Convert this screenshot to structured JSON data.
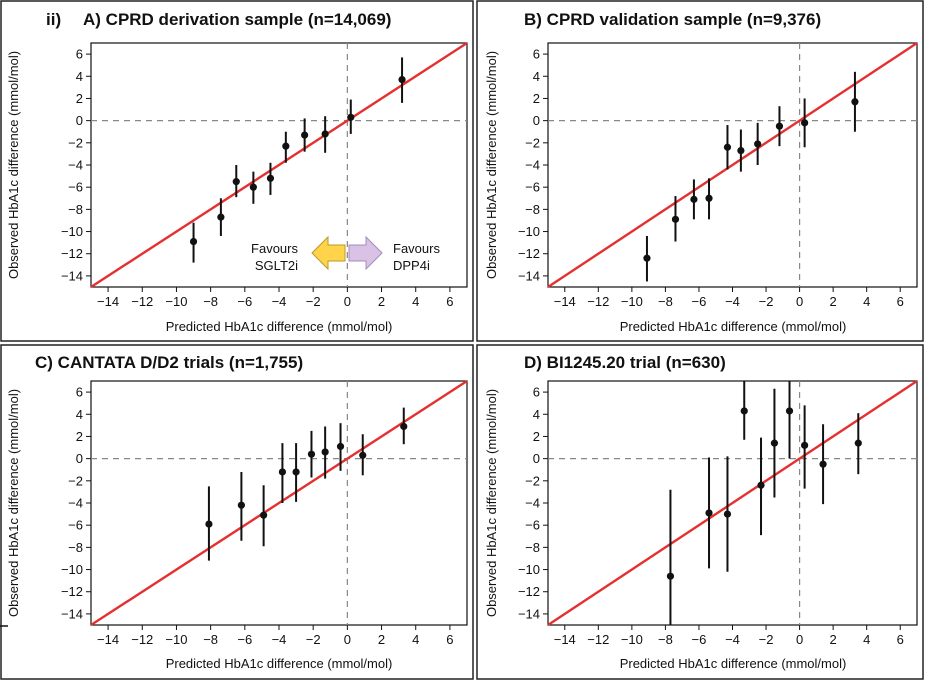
{
  "panel_label": "ii)",
  "annotation": {
    "left_label_line1": "Favours",
    "left_label_line2": "SGLT2i",
    "right_label_line1": "Favours",
    "right_label_line2": "DPP4i",
    "left_arrow_color": "#ffd44a",
    "right_arrow_color": "#d9c2e6"
  },
  "colors": {
    "identity_line": "#e53030",
    "points": "#111111",
    "reference_lines": "#888888"
  },
  "chart_data": [
    {
      "type": "scatter",
      "title": "A) CPRD derivation sample (n=14,069)",
      "xlabel": "Predicted HbA1c difference (mmol/mol)",
      "ylabel": "Observed HbA1c difference (mmol/mol)",
      "xlim": [
        -15,
        7
      ],
      "ylim": [
        -15,
        7
      ],
      "xticks": [
        -14,
        -12,
        -10,
        -8,
        -6,
        -4,
        -2,
        0,
        2,
        4,
        6
      ],
      "yticks": [
        -14,
        -12,
        -10,
        -8,
        -6,
        -4,
        -2,
        0,
        2,
        4,
        6
      ],
      "reference_lines": {
        "x": 0,
        "y": 0
      },
      "identity_line": true,
      "points": [
        {
          "x": -9.0,
          "y": -10.9,
          "lo": -12.8,
          "hi": -9.2
        },
        {
          "x": -7.4,
          "y": -8.7,
          "lo": -10.4,
          "hi": -7.0
        },
        {
          "x": -6.5,
          "y": -5.5,
          "lo": -6.9,
          "hi": -4.0
        },
        {
          "x": -5.5,
          "y": -6.0,
          "lo": -7.5,
          "hi": -4.6
        },
        {
          "x": -4.5,
          "y": -5.2,
          "lo": -6.7,
          "hi": -3.8
        },
        {
          "x": -3.6,
          "y": -2.3,
          "lo": -3.8,
          "hi": -1.0
        },
        {
          "x": -2.5,
          "y": -1.3,
          "lo": -2.8,
          "hi": 0.2
        },
        {
          "x": -1.3,
          "y": -1.2,
          "lo": -2.9,
          "hi": 0.4
        },
        {
          "x": 0.2,
          "y": 0.3,
          "lo": -1.2,
          "hi": 1.9
        },
        {
          "x": 3.2,
          "y": 3.7,
          "lo": 1.6,
          "hi": 5.7
        }
      ]
    },
    {
      "type": "scatter",
      "title": "B) CPRD validation sample (n=9,376)",
      "xlabel": "Predicted HbA1c difference (mmol/mol)",
      "ylabel": "Observed HbA1c difference (mmol/mol)",
      "xlim": [
        -15,
        7
      ],
      "ylim": [
        -15,
        7
      ],
      "xticks": [
        -14,
        -12,
        -10,
        -8,
        -6,
        -4,
        -2,
        0,
        2,
        4,
        6
      ],
      "yticks": [
        -14,
        -12,
        -10,
        -8,
        -6,
        -4,
        -2,
        0,
        2,
        4,
        6
      ],
      "reference_lines": {
        "x": 0,
        "y": 0
      },
      "identity_line": true,
      "points": [
        {
          "x": -9.1,
          "y": -12.4,
          "lo": -14.5,
          "hi": -10.4
        },
        {
          "x": -7.4,
          "y": -8.9,
          "lo": -10.9,
          "hi": -6.8
        },
        {
          "x": -6.3,
          "y": -7.1,
          "lo": -8.9,
          "hi": -5.3
        },
        {
          "x": -5.4,
          "y": -7.0,
          "lo": -8.9,
          "hi": -5.2
        },
        {
          "x": -4.3,
          "y": -2.4,
          "lo": -4.4,
          "hi": -0.4
        },
        {
          "x": -3.5,
          "y": -2.7,
          "lo": -4.6,
          "hi": -0.8
        },
        {
          "x": -2.5,
          "y": -2.1,
          "lo": -4.0,
          "hi": -0.2
        },
        {
          "x": -1.2,
          "y": -0.5,
          "lo": -2.3,
          "hi": 1.3
        },
        {
          "x": 0.3,
          "y": -0.2,
          "lo": -2.4,
          "hi": 2.0
        },
        {
          "x": 3.3,
          "y": 1.7,
          "lo": -1.0,
          "hi": 4.4
        }
      ]
    },
    {
      "type": "scatter",
      "title": "C) CANTATA D/D2 trials (n=1,755)",
      "xlabel": "Predicted HbA1c difference (mmol/mol)",
      "ylabel": "Observed HbA1c difference (mmol/mol)",
      "xlim": [
        -15,
        7
      ],
      "ylim": [
        -15,
        7
      ],
      "xticks": [
        -14,
        -12,
        -10,
        -8,
        -6,
        -4,
        -2,
        0,
        2,
        4,
        6
      ],
      "yticks": [
        -14,
        -12,
        -10,
        -8,
        -6,
        -4,
        -2,
        0,
        2,
        4,
        6
      ],
      "reference_lines": {
        "x": 0,
        "y": 0
      },
      "identity_line": true,
      "points": [
        {
          "x": -8.1,
          "y": -5.9,
          "lo": -9.2,
          "hi": -2.5
        },
        {
          "x": -6.2,
          "y": -4.2,
          "lo": -7.4,
          "hi": -1.2
        },
        {
          "x": -4.9,
          "y": -5.1,
          "lo": -7.9,
          "hi": -2.4
        },
        {
          "x": -3.8,
          "y": -1.2,
          "lo": -4.0,
          "hi": 1.4
        },
        {
          "x": -3.0,
          "y": -1.2,
          "lo": -3.9,
          "hi": 1.4
        },
        {
          "x": -2.1,
          "y": 0.4,
          "lo": -1.7,
          "hi": 2.5
        },
        {
          "x": -1.3,
          "y": 0.6,
          "lo": -1.8,
          "hi": 2.9
        },
        {
          "x": -0.4,
          "y": 1.1,
          "lo": -1.1,
          "hi": 3.2
        },
        {
          "x": 0.9,
          "y": 0.3,
          "lo": -1.5,
          "hi": 2.2
        },
        {
          "x": 3.3,
          "y": 2.9,
          "lo": 1.3,
          "hi": 4.6
        }
      ]
    },
    {
      "type": "scatter",
      "title": "D) BI1245.20 trial (n=630)",
      "xlabel": "Predicted HbA1c difference (mmol/mol)",
      "ylabel": "Observed HbA1c difference (mmol/mol)",
      "xlim": [
        -15,
        7
      ],
      "ylim": [
        -15,
        7
      ],
      "xticks": [
        -14,
        -12,
        -10,
        -8,
        -6,
        -4,
        -2,
        0,
        2,
        4,
        6
      ],
      "yticks": [
        -14,
        -12,
        -10,
        -8,
        -6,
        -4,
        -2,
        0,
        2,
        4,
        6
      ],
      "reference_lines": {
        "x": 0,
        "y": 0
      },
      "identity_line": true,
      "points": [
        {
          "x": -7.7,
          "y": -10.6,
          "lo": -15.0,
          "hi": -2.8
        },
        {
          "x": -5.4,
          "y": -4.9,
          "lo": -9.9,
          "hi": 0.1
        },
        {
          "x": -4.3,
          "y": -5.0,
          "lo": -10.2,
          "hi": 0.2
        },
        {
          "x": -3.3,
          "y": 4.3,
          "lo": 1.7,
          "hi": 7.0
        },
        {
          "x": -2.3,
          "y": -2.4,
          "lo": -6.9,
          "hi": 1.9
        },
        {
          "x": -1.5,
          "y": 1.4,
          "lo": -3.5,
          "hi": 6.3
        },
        {
          "x": -0.6,
          "y": 4.3,
          "lo": 0.0,
          "hi": 7.0
        },
        {
          "x": 0.3,
          "y": 1.2,
          "lo": -2.7,
          "hi": 4.8
        },
        {
          "x": 1.4,
          "y": -0.5,
          "lo": -4.1,
          "hi": 3.1
        },
        {
          "x": 3.5,
          "y": 1.4,
          "lo": -1.4,
          "hi": 4.1
        }
      ]
    }
  ]
}
